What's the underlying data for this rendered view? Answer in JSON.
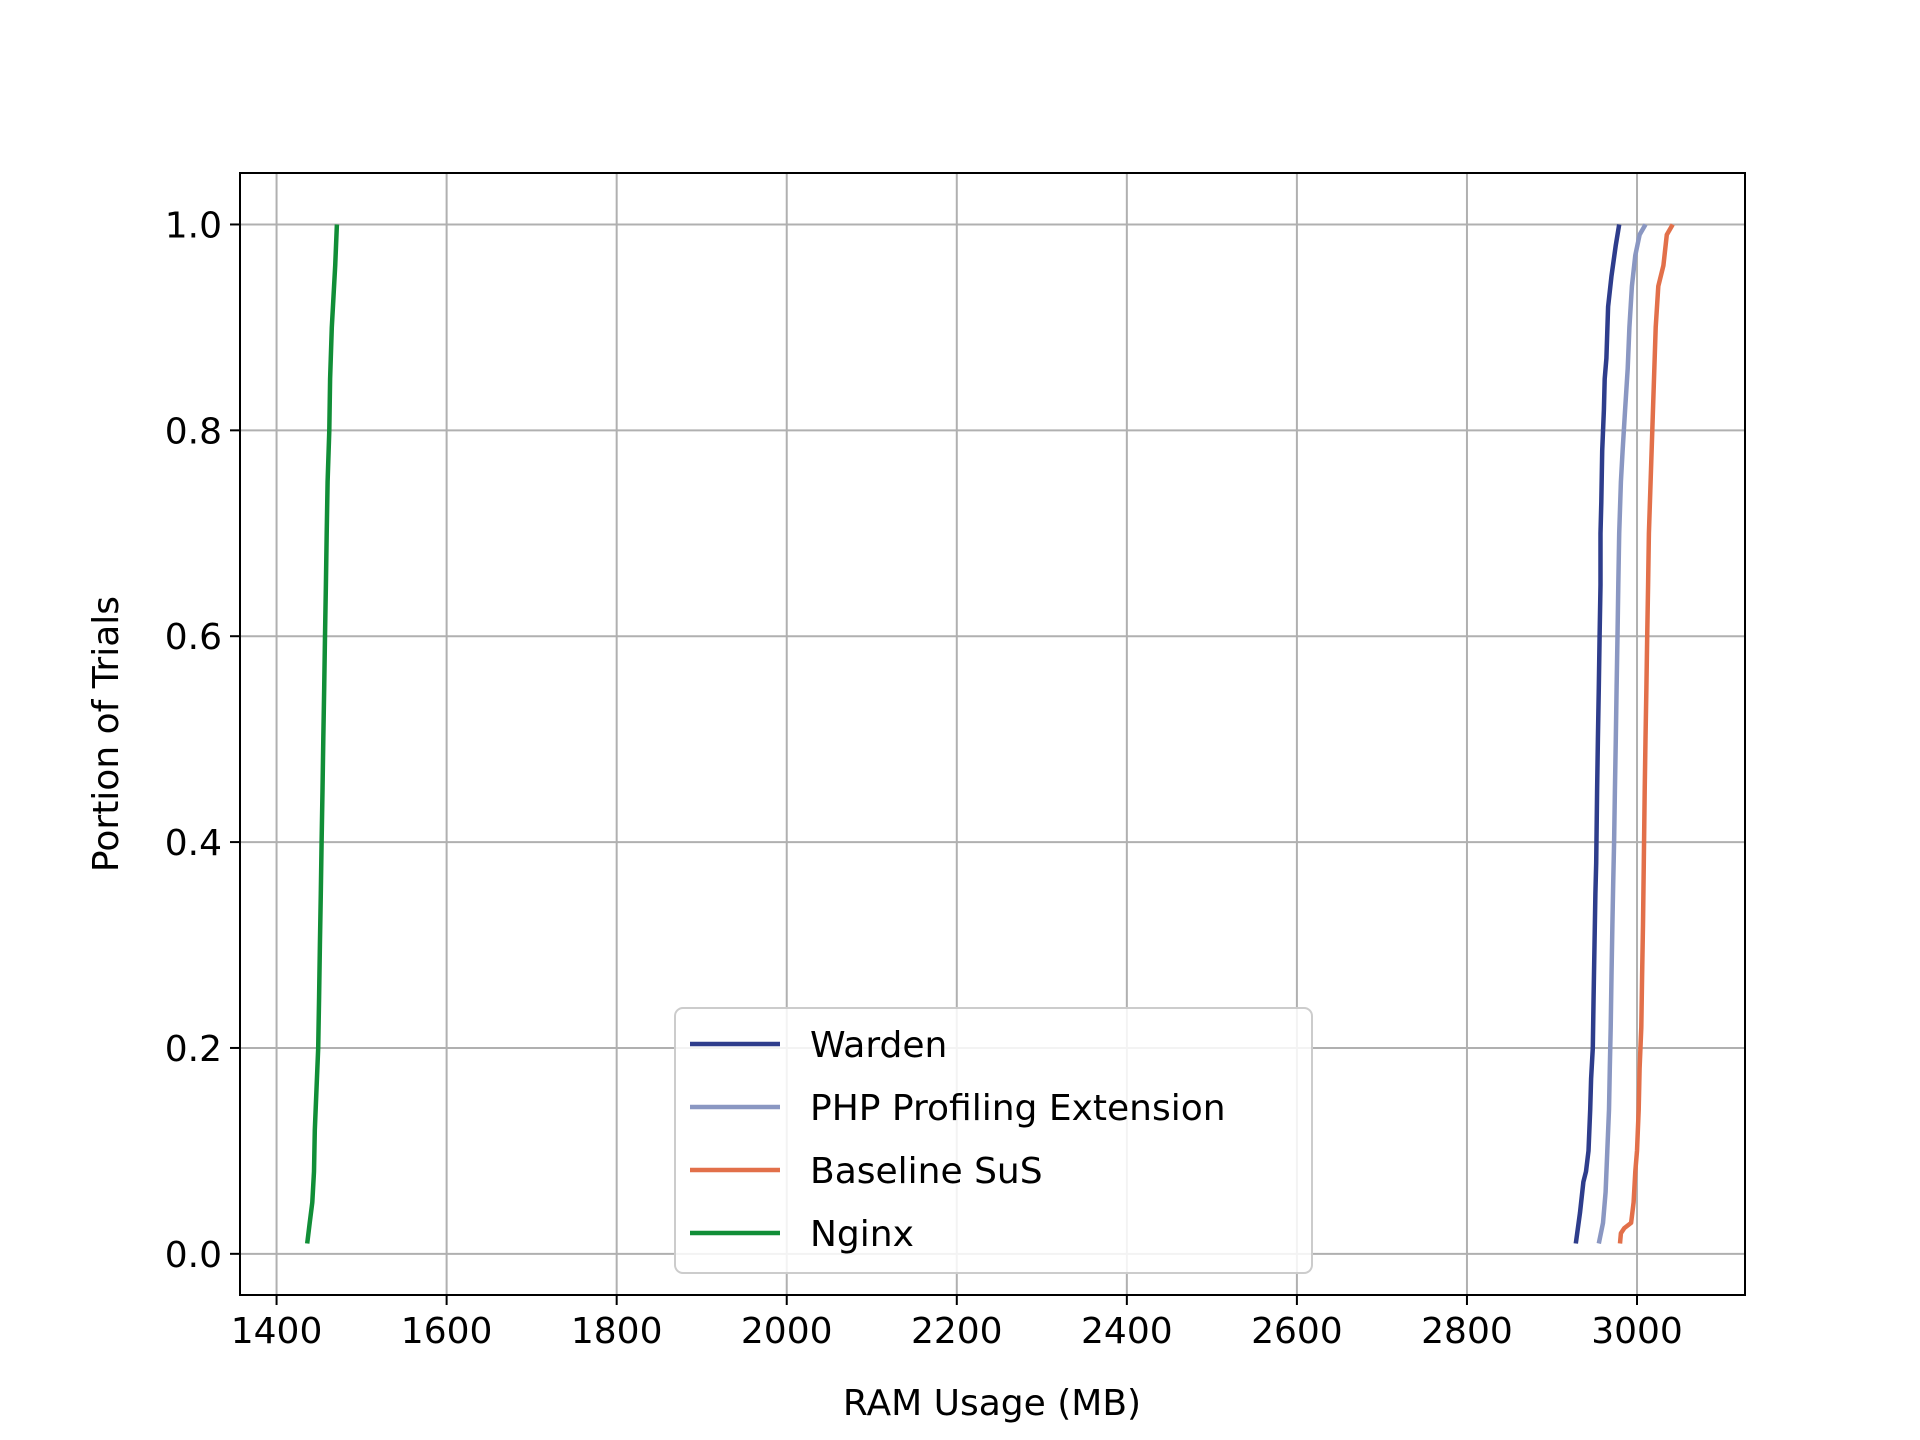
{
  "chart_data": {
    "type": "line",
    "title": "",
    "xlabel": "RAM Usage (MB)",
    "ylabel": "Portion of Trials",
    "xlim": [
      1357,
      3127
    ],
    "ylim": [
      -0.04,
      1.05
    ],
    "xticks": [
      1400,
      1600,
      1800,
      2000,
      2200,
      2400,
      2600,
      2800,
      3000
    ],
    "yticks": [
      0.0,
      0.2,
      0.4,
      0.6,
      0.8,
      1.0
    ],
    "xtick_labels": [
      "1400",
      "1600",
      "1800",
      "2000",
      "2200",
      "2400",
      "2600",
      "2800",
      "3000"
    ],
    "ytick_labels": [
      "0.0",
      "0.2",
      "0.4",
      "0.6",
      "0.8",
      "1.0"
    ],
    "grid": true,
    "legend_position": "lower center",
    "series": [
      {
        "name": "Warden",
        "color": "#2e3d8c",
        "points": [
          [
            2928,
            0.01
          ],
          [
            2933,
            0.04
          ],
          [
            2937,
            0.07
          ],
          [
            2940,
            0.08
          ],
          [
            2943,
            0.1
          ],
          [
            2945,
            0.14
          ],
          [
            2946,
            0.17
          ],
          [
            2948,
            0.2
          ],
          [
            2949,
            0.25
          ],
          [
            2950,
            0.3
          ],
          [
            2951,
            0.35
          ],
          [
            2952,
            0.38
          ],
          [
            2953,
            0.45
          ],
          [
            2954,
            0.5
          ],
          [
            2955,
            0.55
          ],
          [
            2956,
            0.6
          ],
          [
            2957,
            0.65
          ],
          [
            2957,
            0.7
          ],
          [
            2958,
            0.73
          ],
          [
            2959,
            0.78
          ],
          [
            2961,
            0.82
          ],
          [
            2962,
            0.85
          ],
          [
            2964,
            0.87
          ],
          [
            2966,
            0.92
          ],
          [
            2970,
            0.95
          ],
          [
            2975,
            0.98
          ],
          [
            2979,
            1.0
          ]
        ]
      },
      {
        "name": "PHP Profiling Extension",
        "color": "#8a97c2",
        "points": [
          [
            2955,
            0.01
          ],
          [
            2960,
            0.03
          ],
          [
            2963,
            0.06
          ],
          [
            2965,
            0.1
          ],
          [
            2967,
            0.14
          ],
          [
            2968,
            0.18
          ],
          [
            2969,
            0.22
          ],
          [
            2970,
            0.27
          ],
          [
            2971,
            0.32
          ],
          [
            2972,
            0.36
          ],
          [
            2973,
            0.4
          ],
          [
            2974,
            0.45
          ],
          [
            2975,
            0.5
          ],
          [
            2976,
            0.55
          ],
          [
            2977,
            0.6
          ],
          [
            2978,
            0.65
          ],
          [
            2979,
            0.7
          ],
          [
            2981,
            0.75
          ],
          [
            2983,
            0.78
          ],
          [
            2986,
            0.82
          ],
          [
            2989,
            0.86
          ],
          [
            2991,
            0.9
          ],
          [
            2994,
            0.94
          ],
          [
            2998,
            0.97
          ],
          [
            3003,
            0.99
          ],
          [
            3010,
            1.0
          ]
        ]
      },
      {
        "name": "Baseline SuS",
        "color": "#e2704a",
        "points": [
          [
            2980,
            0.01
          ],
          [
            2981,
            0.02
          ],
          [
            2985,
            0.025
          ],
          [
            2993,
            0.03
          ],
          [
            2996,
            0.05
          ],
          [
            2998,
            0.08
          ],
          [
            3000,
            0.1
          ],
          [
            3002,
            0.14
          ],
          [
            3003,
            0.18
          ],
          [
            3005,
            0.22
          ],
          [
            3006,
            0.27
          ],
          [
            3007,
            0.32
          ],
          [
            3008,
            0.38
          ],
          [
            3009,
            0.45
          ],
          [
            3010,
            0.5
          ],
          [
            3011,
            0.55
          ],
          [
            3012,
            0.6
          ],
          [
            3013,
            0.65
          ],
          [
            3014,
            0.7
          ],
          [
            3016,
            0.75
          ],
          [
            3018,
            0.8
          ],
          [
            3020,
            0.85
          ],
          [
            3022,
            0.9
          ],
          [
            3025,
            0.94
          ],
          [
            3031,
            0.96
          ],
          [
            3035,
            0.99
          ],
          [
            3042,
            1.0
          ]
        ]
      },
      {
        "name": "Nginx",
        "color": "#118e37",
        "points": [
          [
            1436,
            0.01
          ],
          [
            1439,
            0.03
          ],
          [
            1442,
            0.05
          ],
          [
            1444,
            0.08
          ],
          [
            1445,
            0.12
          ],
          [
            1447,
            0.16
          ],
          [
            1449,
            0.2
          ],
          [
            1450,
            0.25
          ],
          [
            1451,
            0.3
          ],
          [
            1452,
            0.35
          ],
          [
            1453,
            0.4
          ],
          [
            1454,
            0.45
          ],
          [
            1455,
            0.5
          ],
          [
            1456,
            0.55
          ],
          [
            1457,
            0.6
          ],
          [
            1458,
            0.65
          ],
          [
            1459,
            0.7
          ],
          [
            1460,
            0.75
          ],
          [
            1462,
            0.8
          ],
          [
            1463,
            0.85
          ],
          [
            1465,
            0.9
          ],
          [
            1467,
            0.93
          ],
          [
            1469,
            0.96
          ],
          [
            1471,
            1.0
          ]
        ]
      }
    ]
  }
}
